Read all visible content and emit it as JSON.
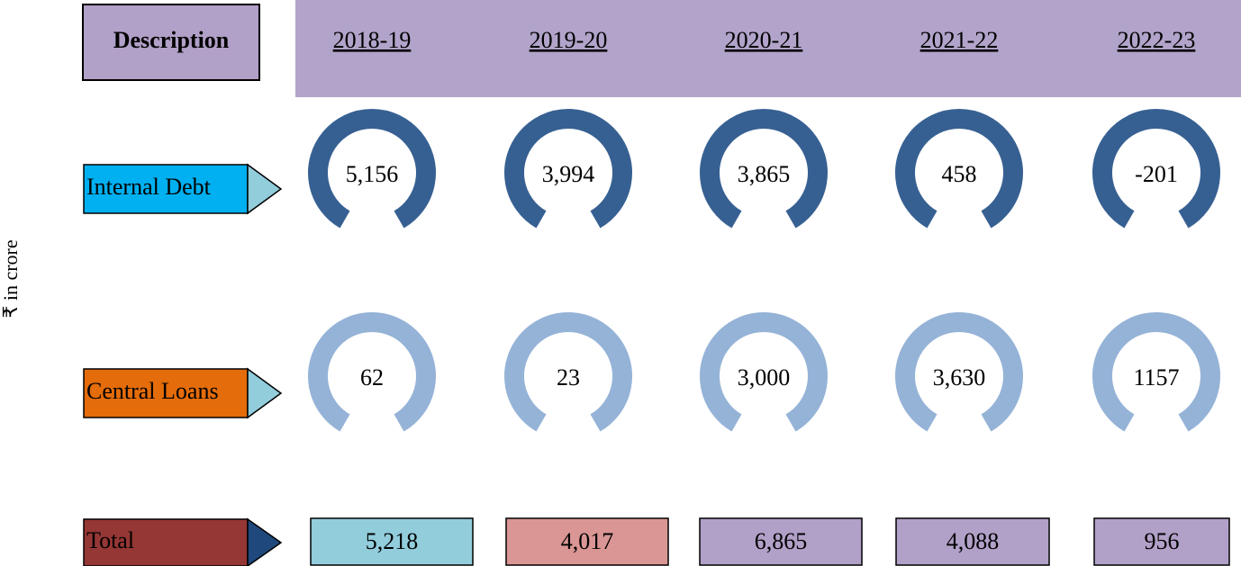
{
  "axis_note": "₹ in crore",
  "header": {
    "description": "Description",
    "years": [
      "2018-19",
      "2019-20",
      "2020-21",
      "2021-22",
      "2022-23"
    ]
  },
  "rows": [
    {
      "label": "Internal Debt",
      "values": [
        "5,156",
        "3,994",
        "3,865",
        "458",
        "-201"
      ]
    },
    {
      "label": "Central Loans",
      "values": [
        "62",
        "23",
        "3,000",
        "3,630",
        "1157"
      ]
    },
    {
      "label": "Total",
      "values": [
        "5,218",
        "4,017",
        "6,865",
        "4,088",
        "956"
      ]
    }
  ]
}
